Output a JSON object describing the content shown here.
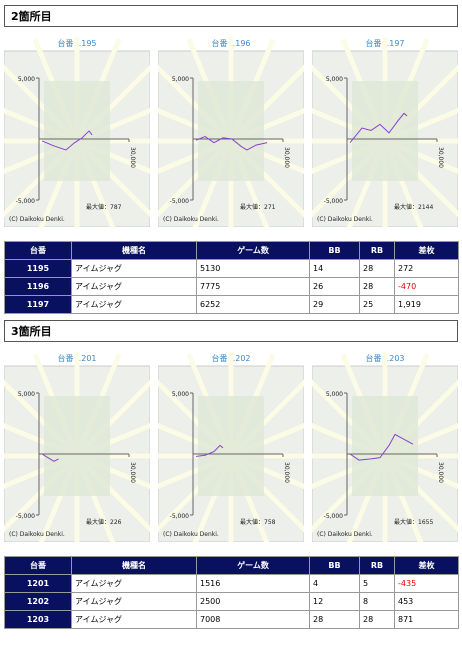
{
  "sections": [
    {
      "title": "2箇所目",
      "charts": [
        {
          "title": "台番:1195",
          "max_label": "最大値：787",
          "copyright": "(C) Daikoku Denki.",
          "ylim": [
            -5000,
            5000
          ],
          "yticks": [
            {
              "value": 5000,
              "label": "5,000"
            },
            {
              "value": -5000,
              "label": "-5,000"
            }
          ],
          "xlim": [
            0,
            30000
          ],
          "xticks": [
            {
              "value": 30000,
              "label": "30,000"
            }
          ],
          "color": "#8a3fd1",
          "x": [
            1000,
            5000,
            9000,
            11700,
            14300,
            16700,
            17700
          ],
          "values": [
            -160,
            -570,
            -900,
            -330,
            80,
            660,
            330
          ]
        },
        {
          "title": "台番:1196",
          "max_label": "最大値：271",
          "copyright": "(C) Daikoku Denki.",
          "ylim": [
            -5000,
            5000
          ],
          "yticks": [
            {
              "value": 5000,
              "label": "5,000"
            },
            {
              "value": -5000,
              "label": "-5,000"
            }
          ],
          "xlim": [
            0,
            30000
          ],
          "xticks": [
            {
              "value": 30000,
              "label": "30,000"
            }
          ],
          "color": "#8a3fd1",
          "x": [
            1000,
            4000,
            7000,
            10000,
            13000,
            16000,
            18000,
            21000,
            24700
          ],
          "values": [
            -100,
            200,
            -300,
            100,
            0,
            -600,
            -900,
            -500,
            -300
          ]
        },
        {
          "title": "台番:1197",
          "max_label": "最大値：2144",
          "copyright": "(C) Daikoku Denki.",
          "ylim": [
            -5000,
            5000
          ],
          "yticks": [
            {
              "value": 5000,
              "label": "5,000"
            },
            {
              "value": -5000,
              "label": "-5,000"
            }
          ],
          "xlim": [
            0,
            30000
          ],
          "xticks": [
            {
              "value": 30000,
              "label": "30,000"
            }
          ],
          "color": "#8a3fd1",
          "x": [
            1000,
            5000,
            8000,
            11000,
            14000,
            17000,
            19000,
            20000
          ],
          "values": [
            -300,
            900,
            700,
            1200,
            500,
            1500,
            2100,
            1900
          ]
        }
      ],
      "table": {
        "header": [
          "台番",
          "機種名",
          "ゲーム数",
          "BB",
          "RB",
          "差枚"
        ],
        "rows": [
          [
            "1195",
            "アイムジャグ",
            "5130",
            "14",
            "28",
            "272"
          ],
          [
            "1196",
            "アイムジャグ",
            "7775",
            "26",
            "28",
            "-470"
          ],
          [
            "1197",
            "アイムジャグ",
            "6252",
            "29",
            "25",
            "1,919"
          ]
        ]
      }
    },
    {
      "title": "3箇所目",
      "charts": [
        {
          "title": "台番:1201",
          "max_label": "最大値：226",
          "copyright": "(C) Daikoku Denki.",
          "ylim": [
            -5000,
            5000
          ],
          "yticks": [
            {
              "value": 5000,
              "label": "5,000"
            },
            {
              "value": -5000,
              "label": "-5,000"
            }
          ],
          "xlim": [
            0,
            30000
          ],
          "xticks": [
            {
              "value": 30000,
              "label": "30,000"
            }
          ],
          "color": "#8a3fd1",
          "x": [
            1000,
            3000,
            5000,
            6500
          ],
          "values": [
            0,
            -300,
            -600,
            -400
          ]
        },
        {
          "title": "台番:1202",
          "max_label": "最大値：758",
          "copyright": "(C) Daikoku Denki.",
          "ylim": [
            -5000,
            5000
          ],
          "yticks": [
            {
              "value": 5000,
              "label": "5,000"
            },
            {
              "value": -5000,
              "label": "-5,000"
            }
          ],
          "xlim": [
            0,
            30000
          ],
          "xticks": [
            {
              "value": 30000,
              "label": "30,000"
            }
          ],
          "color": "#8a3fd1",
          "x": [
            1000,
            4000,
            7000,
            9000,
            10000
          ],
          "values": [
            -200,
            -100,
            200,
            700,
            500
          ]
        },
        {
          "title": "台番:1203",
          "max_label": "最大値：1655",
          "copyright": "(C) Daikoku Denki.",
          "ylim": [
            -5000,
            5000
          ],
          "yticks": [
            {
              "value": 5000,
              "label": "5,000"
            },
            {
              "value": -5000,
              "label": "-5,000"
            }
          ],
          "xlim": [
            0,
            30000
          ],
          "xticks": [
            {
              "value": 30000,
              "label": "30,000"
            }
          ],
          "color": "#8a3fd1",
          "x": [
            1000,
            4000,
            8000,
            11000,
            14000,
            16000,
            19000,
            22000
          ],
          "values": [
            0,
            -500,
            -400,
            -300,
            700,
            1600,
            1200,
            800
          ]
        }
      ],
      "table": {
        "header": [
          "台番",
          "機種名",
          "ゲーム数",
          "BB",
          "RB",
          "差枚"
        ],
        "rows": [
          [
            "1201",
            "アイムジャグ",
            "1516",
            "4",
            "5",
            "-435"
          ],
          [
            "1202",
            "アイムジャグ",
            "2500",
            "12",
            "8",
            "453"
          ],
          [
            "1203",
            "アイムジャグ",
            "7008",
            "28",
            "28",
            "871"
          ]
        ]
      }
    }
  ]
}
